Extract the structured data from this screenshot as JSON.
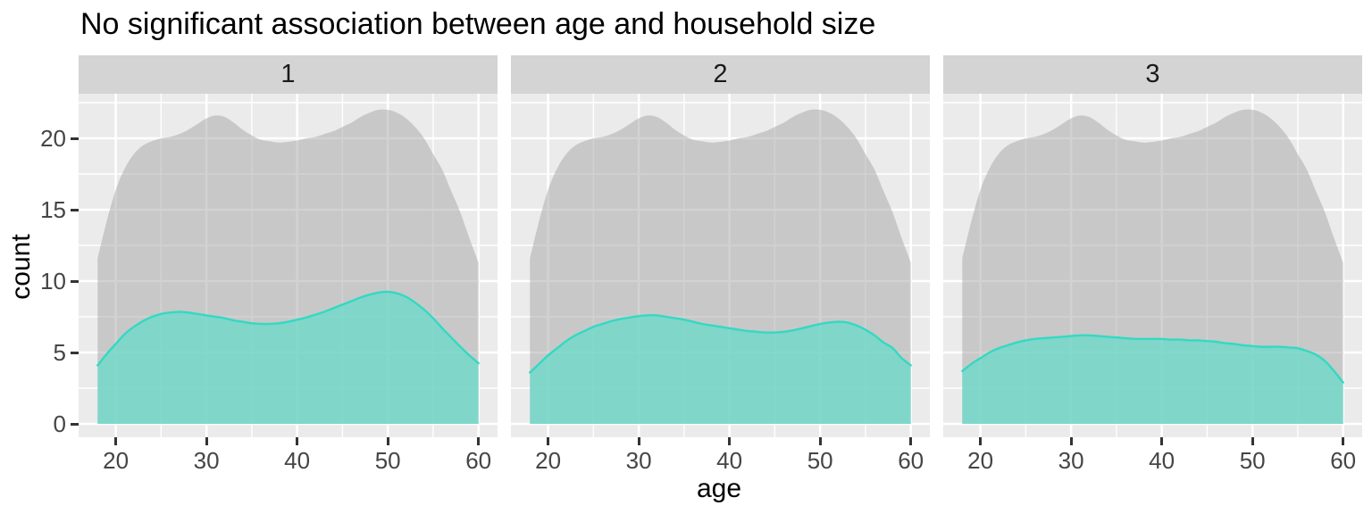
{
  "chart_data": {
    "type": "area",
    "title": "No significant association between age and household size",
    "xlabel": "age",
    "ylabel": "count",
    "facet_variable": "household size",
    "x_ticks": [
      20,
      30,
      40,
      50,
      60
    ],
    "x_minor_ticks": [
      25,
      35,
      45,
      55
    ],
    "y_ticks": [
      0,
      5,
      10,
      15,
      20
    ],
    "y_minor_ticks": [
      2.5,
      7.5,
      12.5,
      17.5,
      22.5
    ],
    "xlim": [
      15.9,
      62.1
    ],
    "ylim": [
      -0.94,
      23.13
    ],
    "x_data_range": [
      18,
      60
    ],
    "grid": true,
    "legend_position": "none",
    "colors": {
      "panel_background": "#EBEBEB",
      "grid": "#FFFFFF",
      "strip_background": "#D4D4D4",
      "strip_text": "#1A1A1A",
      "overall_fill": "rgba(166,166,166,0.5)",
      "subset_fill": "rgba(104,219,202,0.75)",
      "subset_line": "#33D9C3",
      "tick_text": "#454545",
      "tick_mark": "#333333"
    },
    "overall_points": [
      [
        18,
        11.6
      ],
      [
        19,
        14.2
      ],
      [
        20,
        16.4
      ],
      [
        21,
        17.9
      ],
      [
        22,
        18.9
      ],
      [
        23,
        19.5
      ],
      [
        24,
        19.8
      ],
      [
        25,
        20.0
      ],
      [
        26,
        20.1
      ],
      [
        27,
        20.3
      ],
      [
        28,
        20.6
      ],
      [
        29,
        21.0
      ],
      [
        30,
        21.4
      ],
      [
        31,
        21.6
      ],
      [
        32,
        21.5
      ],
      [
        33,
        21.1
      ],
      [
        34,
        20.6
      ],
      [
        35,
        20.2
      ],
      [
        36,
        19.9
      ],
      [
        37,
        19.8
      ],
      [
        38,
        19.7
      ],
      [
        39,
        19.75
      ],
      [
        40,
        19.85
      ],
      [
        41,
        20.0
      ],
      [
        42,
        20.1
      ],
      [
        43,
        20.3
      ],
      [
        44,
        20.5
      ],
      [
        45,
        20.8
      ],
      [
        46,
        21.1
      ],
      [
        47,
        21.5
      ],
      [
        48,
        21.8
      ],
      [
        49,
        22.0
      ],
      [
        50,
        22.0
      ],
      [
        51,
        21.8
      ],
      [
        52,
        21.4
      ],
      [
        53,
        20.8
      ],
      [
        54,
        20.0
      ],
      [
        55,
        18.9
      ],
      [
        56,
        17.8
      ],
      [
        57,
        16.3
      ],
      [
        58,
        14.8
      ],
      [
        59,
        13.0
      ],
      [
        60,
        11.3
      ]
    ],
    "facets": [
      {
        "label": "1",
        "subset_points": [
          [
            18,
            4.1
          ],
          [
            19,
            4.9
          ],
          [
            20,
            5.6
          ],
          [
            21,
            6.3
          ],
          [
            22,
            6.8
          ],
          [
            23,
            7.2
          ],
          [
            24,
            7.5
          ],
          [
            25,
            7.7
          ],
          [
            26,
            7.8
          ],
          [
            27,
            7.85
          ],
          [
            28,
            7.8
          ],
          [
            29,
            7.7
          ],
          [
            30,
            7.6
          ],
          [
            31,
            7.5
          ],
          [
            32,
            7.4
          ],
          [
            33,
            7.25
          ],
          [
            34,
            7.15
          ],
          [
            35,
            7.05
          ],
          [
            36,
            7.0
          ],
          [
            37,
            7.0
          ],
          [
            38,
            7.05
          ],
          [
            39,
            7.15
          ],
          [
            40,
            7.3
          ],
          [
            41,
            7.45
          ],
          [
            42,
            7.65
          ],
          [
            43,
            7.85
          ],
          [
            44,
            8.1
          ],
          [
            45,
            8.35
          ],
          [
            46,
            8.6
          ],
          [
            47,
            8.85
          ],
          [
            48,
            9.05
          ],
          [
            49,
            9.2
          ],
          [
            50,
            9.25
          ],
          [
            51,
            9.15
          ],
          [
            52,
            8.9
          ],
          [
            53,
            8.5
          ],
          [
            54,
            8.0
          ],
          [
            55,
            7.4
          ],
          [
            56,
            6.7
          ],
          [
            57,
            6.05
          ],
          [
            58,
            5.4
          ],
          [
            59,
            4.8
          ],
          [
            60,
            4.25
          ]
        ]
      },
      {
        "label": "2",
        "subset_points": [
          [
            18,
            3.6
          ],
          [
            19,
            4.2
          ],
          [
            20,
            4.8
          ],
          [
            21,
            5.3
          ],
          [
            22,
            5.8
          ],
          [
            23,
            6.2
          ],
          [
            24,
            6.5
          ],
          [
            25,
            6.8
          ],
          [
            26,
            7.0
          ],
          [
            27,
            7.2
          ],
          [
            28,
            7.35
          ],
          [
            29,
            7.45
          ],
          [
            30,
            7.55
          ],
          [
            31,
            7.6
          ],
          [
            32,
            7.6
          ],
          [
            33,
            7.5
          ],
          [
            34,
            7.4
          ],
          [
            35,
            7.3
          ],
          [
            36,
            7.15
          ],
          [
            37,
            7.0
          ],
          [
            38,
            6.9
          ],
          [
            39,
            6.8
          ],
          [
            40,
            6.7
          ],
          [
            41,
            6.6
          ],
          [
            42,
            6.5
          ],
          [
            43,
            6.45
          ],
          [
            44,
            6.4
          ],
          [
            45,
            6.4
          ],
          [
            46,
            6.45
          ],
          [
            47,
            6.55
          ],
          [
            48,
            6.7
          ],
          [
            49,
            6.85
          ],
          [
            50,
            7.0
          ],
          [
            51,
            7.1
          ],
          [
            52,
            7.15
          ],
          [
            53,
            7.1
          ],
          [
            54,
            6.9
          ],
          [
            55,
            6.6
          ],
          [
            56,
            6.2
          ],
          [
            57,
            5.7
          ],
          [
            58,
            5.3
          ],
          [
            59,
            4.6
          ],
          [
            60,
            4.1
          ]
        ]
      },
      {
        "label": "3",
        "subset_points": [
          [
            18,
            3.7
          ],
          [
            19,
            4.2
          ],
          [
            20,
            4.6
          ],
          [
            21,
            5.0
          ],
          [
            22,
            5.3
          ],
          [
            23,
            5.5
          ],
          [
            24,
            5.7
          ],
          [
            25,
            5.85
          ],
          [
            26,
            5.95
          ],
          [
            27,
            6.0
          ],
          [
            28,
            6.05
          ],
          [
            29,
            6.1
          ],
          [
            30,
            6.15
          ],
          [
            31,
            6.2
          ],
          [
            32,
            6.2
          ],
          [
            33,
            6.15
          ],
          [
            34,
            6.1
          ],
          [
            35,
            6.05
          ],
          [
            36,
            6.0
          ],
          [
            37,
            5.95
          ],
          [
            38,
            5.95
          ],
          [
            39,
            5.95
          ],
          [
            40,
            5.95
          ],
          [
            41,
            5.9
          ],
          [
            42,
            5.9
          ],
          [
            43,
            5.85
          ],
          [
            44,
            5.85
          ],
          [
            45,
            5.8
          ],
          [
            46,
            5.75
          ],
          [
            47,
            5.65
          ],
          [
            48,
            5.6
          ],
          [
            49,
            5.5
          ],
          [
            50,
            5.45
          ],
          [
            51,
            5.4
          ],
          [
            52,
            5.4
          ],
          [
            53,
            5.4
          ],
          [
            54,
            5.35
          ],
          [
            55,
            5.3
          ],
          [
            56,
            5.1
          ],
          [
            57,
            4.85
          ],
          [
            58,
            4.4
          ],
          [
            59,
            3.7
          ],
          [
            60,
            2.9
          ]
        ]
      }
    ]
  }
}
